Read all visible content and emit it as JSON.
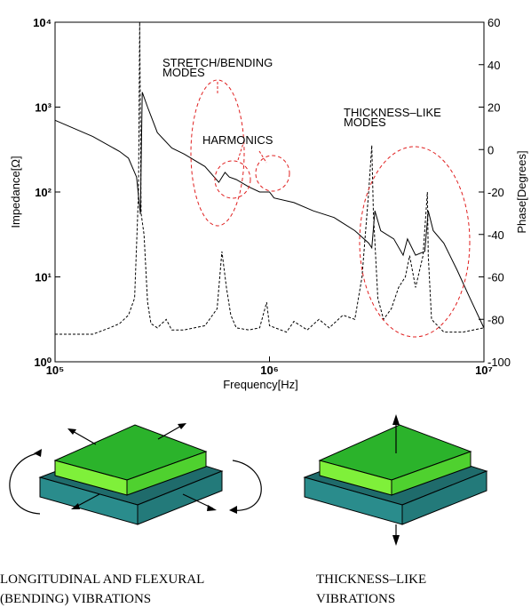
{
  "chart_data": {
    "type": "line",
    "xlabel": "Frequency[Hz]",
    "ylabel": "Impedance[Ω]",
    "y2label": "Phase[Degrees]",
    "xscale": "log",
    "yscale": "log",
    "xlim": [
      100000,
      10000000
    ],
    "xticks": [
      {
        "value": 100000,
        "label": "10⁵"
      },
      {
        "value": 1000000,
        "label": "10⁶"
      },
      {
        "value": 10000000,
        "label": "10⁷"
      }
    ],
    "ylim": [
      1,
      10000
    ],
    "yticks": [
      {
        "value": 1,
        "label": "10⁰"
      },
      {
        "value": 10,
        "label": "10¹"
      },
      {
        "value": 100,
        "label": "10²"
      },
      {
        "value": 1000,
        "label": "10³"
      },
      {
        "value": 10000,
        "label": "10⁴"
      }
    ],
    "y2lim": [
      -100,
      60
    ],
    "y2ticks": [
      -100,
      -80,
      -60,
      -40,
      -20,
      0,
      20,
      40,
      60
    ],
    "annotations": [
      [
        "STRETCH/BENDING",
        "MODES"
      ],
      [
        "HARMONICS"
      ],
      [
        "THICKNESS–LIKE",
        "MODES"
      ]
    ],
    "series": [
      {
        "color": "#000000",
        "dash": false,
        "axis": "y",
        "x": [
          100000,
          150000,
          200000,
          220000,
          240000,
          250000,
          255000,
          270000,
          300000,
          350000,
          400000,
          500000,
          580000,
          620000,
          650000,
          700000,
          800000,
          900000,
          1000000,
          1050000,
          1300000,
          1600000,
          2000000,
          2500000,
          2900000,
          3000000,
          3100000,
          3300000,
          3800000,
          4200000,
          4400000,
          4800000,
          5300000,
          5500000,
          5800000,
          6500000,
          7500000,
          8500000,
          10000000
        ],
        "values": [
          700,
          450,
          300,
          250,
          150,
          55,
          1500,
          1000,
          500,
          330,
          280,
          200,
          130,
          170,
          150,
          140,
          115,
          100,
          100,
          85,
          75,
          60,
          50,
          35,
          25,
          22,
          60,
          35,
          28,
          18,
          28,
          18,
          20,
          60,
          35,
          25,
          12,
          6,
          2.5
        ]
      },
      {
        "color": "#000000",
        "dash": true,
        "axis": "y2",
        "x": [
          100000,
          150000,
          180000,
          200000,
          220000,
          235000,
          245000,
          248000,
          252000,
          260000,
          270000,
          280000,
          300000,
          330000,
          350000,
          400000,
          500000,
          570000,
          600000,
          630000,
          660000,
          700000,
          800000,
          900000,
          970000,
          1000000,
          1200000,
          1300000,
          1500000,
          1700000,
          1900000,
          2200000,
          2500000,
          2700000,
          2900000,
          3000000,
          3050000,
          3200000,
          3400000,
          3700000,
          4000000,
          4300000,
          4500000,
          4800000,
          5200000,
          5450000,
          5500000,
          5700000,
          6500000,
          8000000,
          10000000
        ],
        "values": [
          -87,
          -87,
          -84,
          -82,
          -78,
          -70,
          -20,
          60,
          -30,
          -40,
          -72,
          -82,
          -84,
          -80,
          -85,
          -85,
          -83,
          -75,
          -48,
          -65,
          -78,
          -84,
          -85,
          -84,
          -72,
          -83,
          -86,
          -81,
          -85,
          -80,
          -84,
          -78,
          -80,
          -60,
          -20,
          2,
          -30,
          -70,
          -80,
          -75,
          -65,
          -60,
          -50,
          -65,
          -50,
          -20,
          -50,
          -80,
          -86,
          -86,
          -84
        ]
      }
    ]
  },
  "captions": [
    [
      "LONGITUDINAL AND FLEXURAL",
      "(BENDING)  VIBRATIONS"
    ],
    [
      "THICKNESS–LIKE",
      "VIBRATIONS"
    ]
  ]
}
